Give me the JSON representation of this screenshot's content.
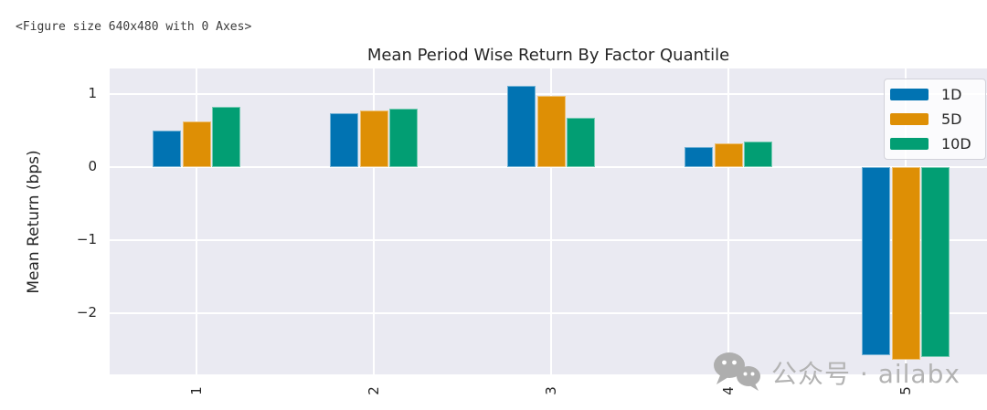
{
  "figure_note": "<Figure size 640x480 with 0 Axes>",
  "watermark": {
    "icon": "wechat-icon",
    "text": "公众号 · ailabx"
  },
  "chart_data": {
    "type": "bar",
    "title": "Mean Period Wise Return By Factor Quantile",
    "xlabel": "",
    "ylabel": "Mean Return (bps)",
    "categories": [
      "1",
      "2",
      "3",
      "4",
      "5"
    ],
    "series": [
      {
        "name": "1D",
        "color": "#0173b2",
        "values": [
          0.5,
          0.74,
          1.11,
          0.28,
          -2.58
        ]
      },
      {
        "name": "5D",
        "color": "#de8f05",
        "values": [
          0.62,
          0.77,
          0.97,
          0.32,
          -2.64
        ]
      },
      {
        "name": "10D",
        "color": "#029e73",
        "values": [
          0.82,
          0.8,
          0.67,
          0.35,
          -2.6
        ]
      }
    ],
    "yticks": [
      {
        "label": "1",
        "v": 1
      },
      {
        "label": "0",
        "v": 0
      },
      {
        "label": "−1",
        "v": -1
      },
      {
        "label": "−2",
        "v": -2
      }
    ],
    "ylim": [
      -2.84,
      1.35
    ],
    "grid": true,
    "legend_position": "upper right",
    "plot_bg": "#eaeaf2",
    "grid_color": "#ffffff"
  }
}
